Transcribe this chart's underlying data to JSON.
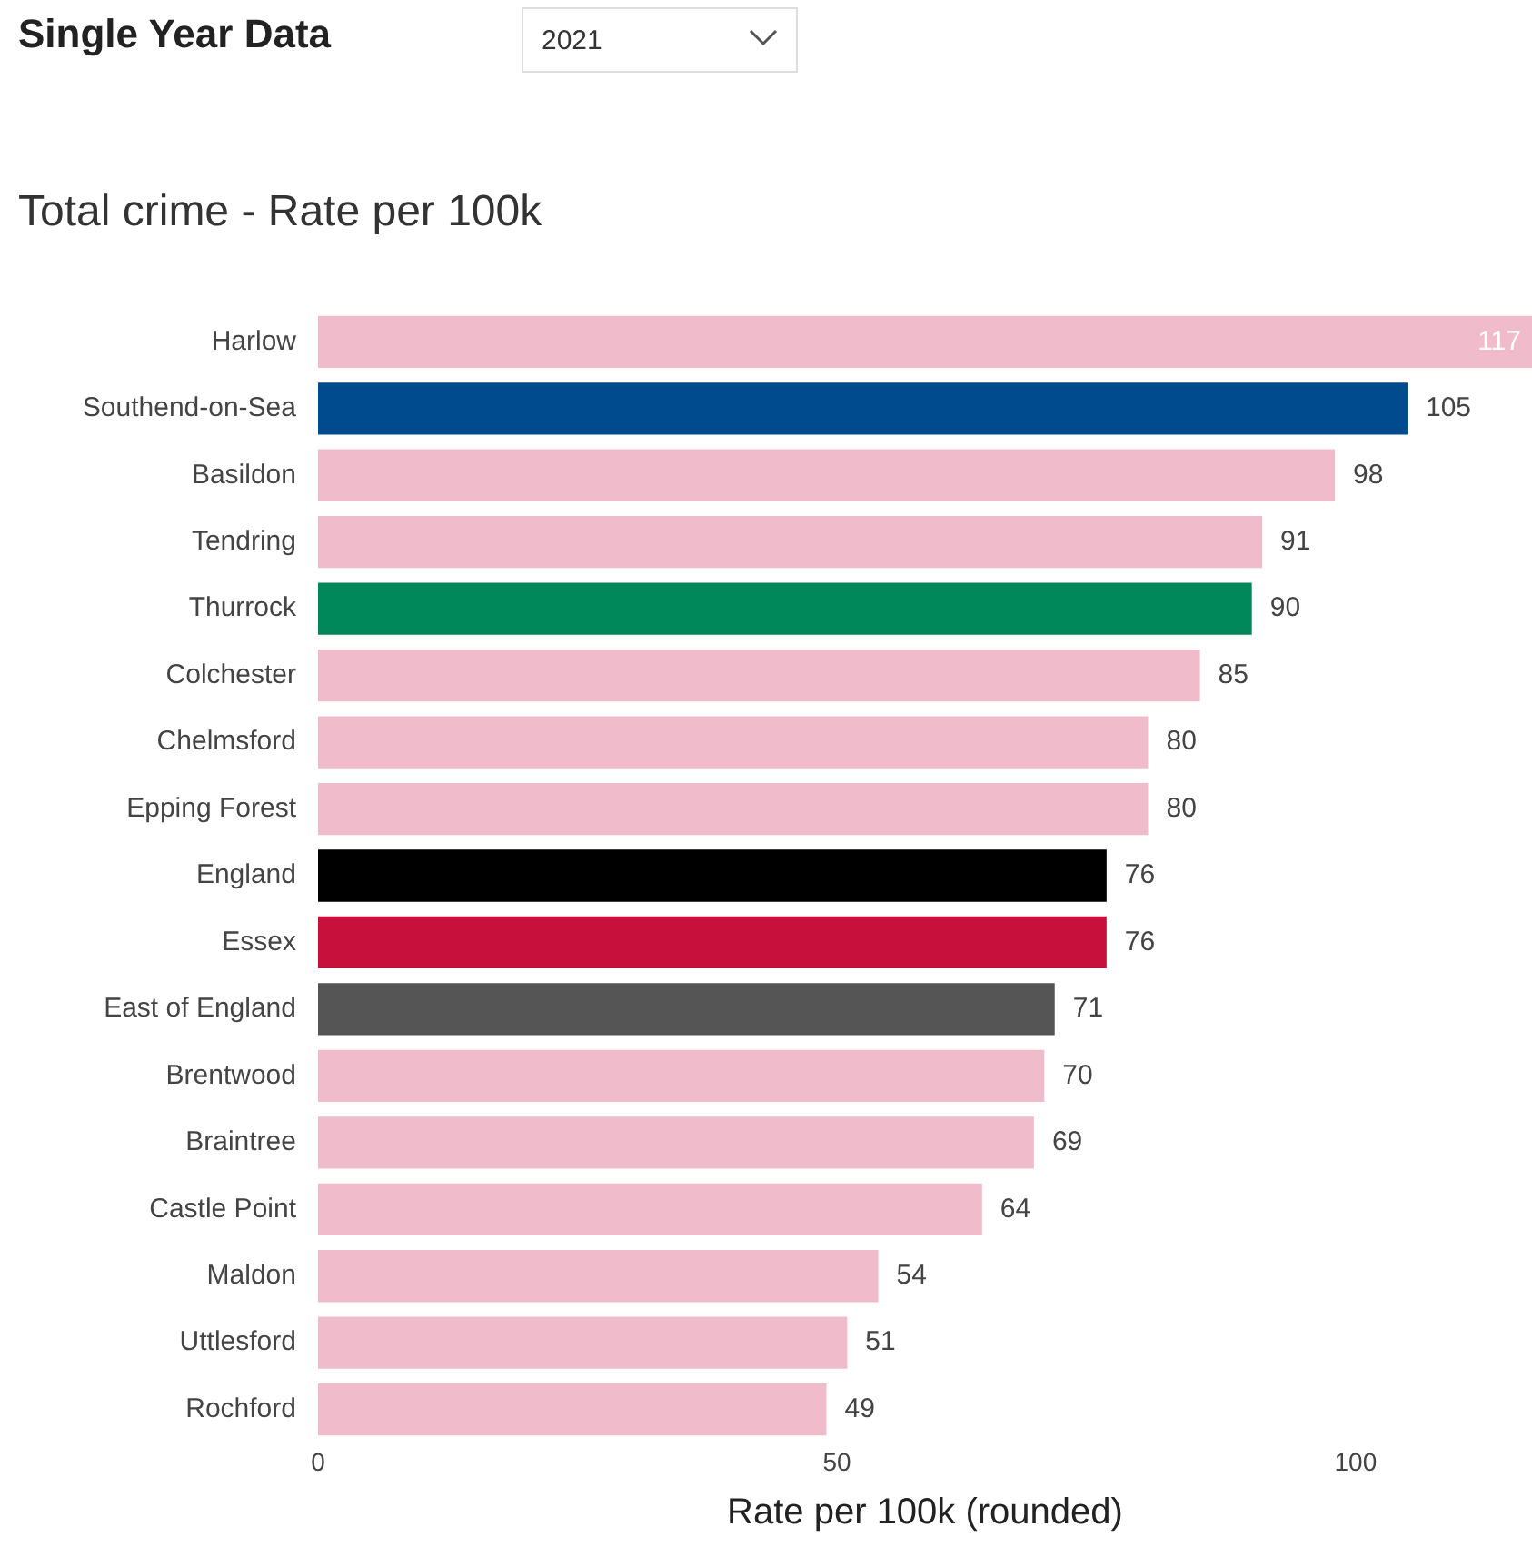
{
  "chart_data": {
    "type": "bar",
    "orientation": "horizontal",
    "title": "Total crime - Rate per 100k",
    "xlabel": "Rate per 100k (rounded)",
    "annotations": [
      "Single Year Data",
      "2021"
    ],
    "categories": [
      "Harlow",
      "Southend-on-Sea",
      "Basildon",
      "Tendring",
      "Thurrock",
      "Colchester",
      "Chelmsford",
      "Epping Forest",
      "England",
      "Essex",
      "East of England",
      "Brentwood",
      "Braintree",
      "Castle Point",
      "Maldon",
      "Uttlesford",
      "Rochford"
    ],
    "values": [
      117,
      105,
      98,
      91,
      90,
      85,
      80,
      80,
      76,
      76,
      71,
      70,
      69,
      64,
      54,
      51,
      49
    ],
    "colors": [
      "#f0bccb",
      "#004b8d",
      "#f0bccb",
      "#f0bccb",
      "#00875a",
      "#f0bccb",
      "#f0bccb",
      "#f0bccb",
      "#000000",
      "#c8103c",
      "#555555",
      "#f0bccb",
      "#f0bccb",
      "#f0bccb",
      "#f0bccb",
      "#f0bccb",
      "#f0bccb"
    ],
    "xlim": [
      0,
      117
    ],
    "xticks": [
      0,
      50,
      100
    ],
    "grid": false,
    "legend": false,
    "data_labels": true
  }
}
